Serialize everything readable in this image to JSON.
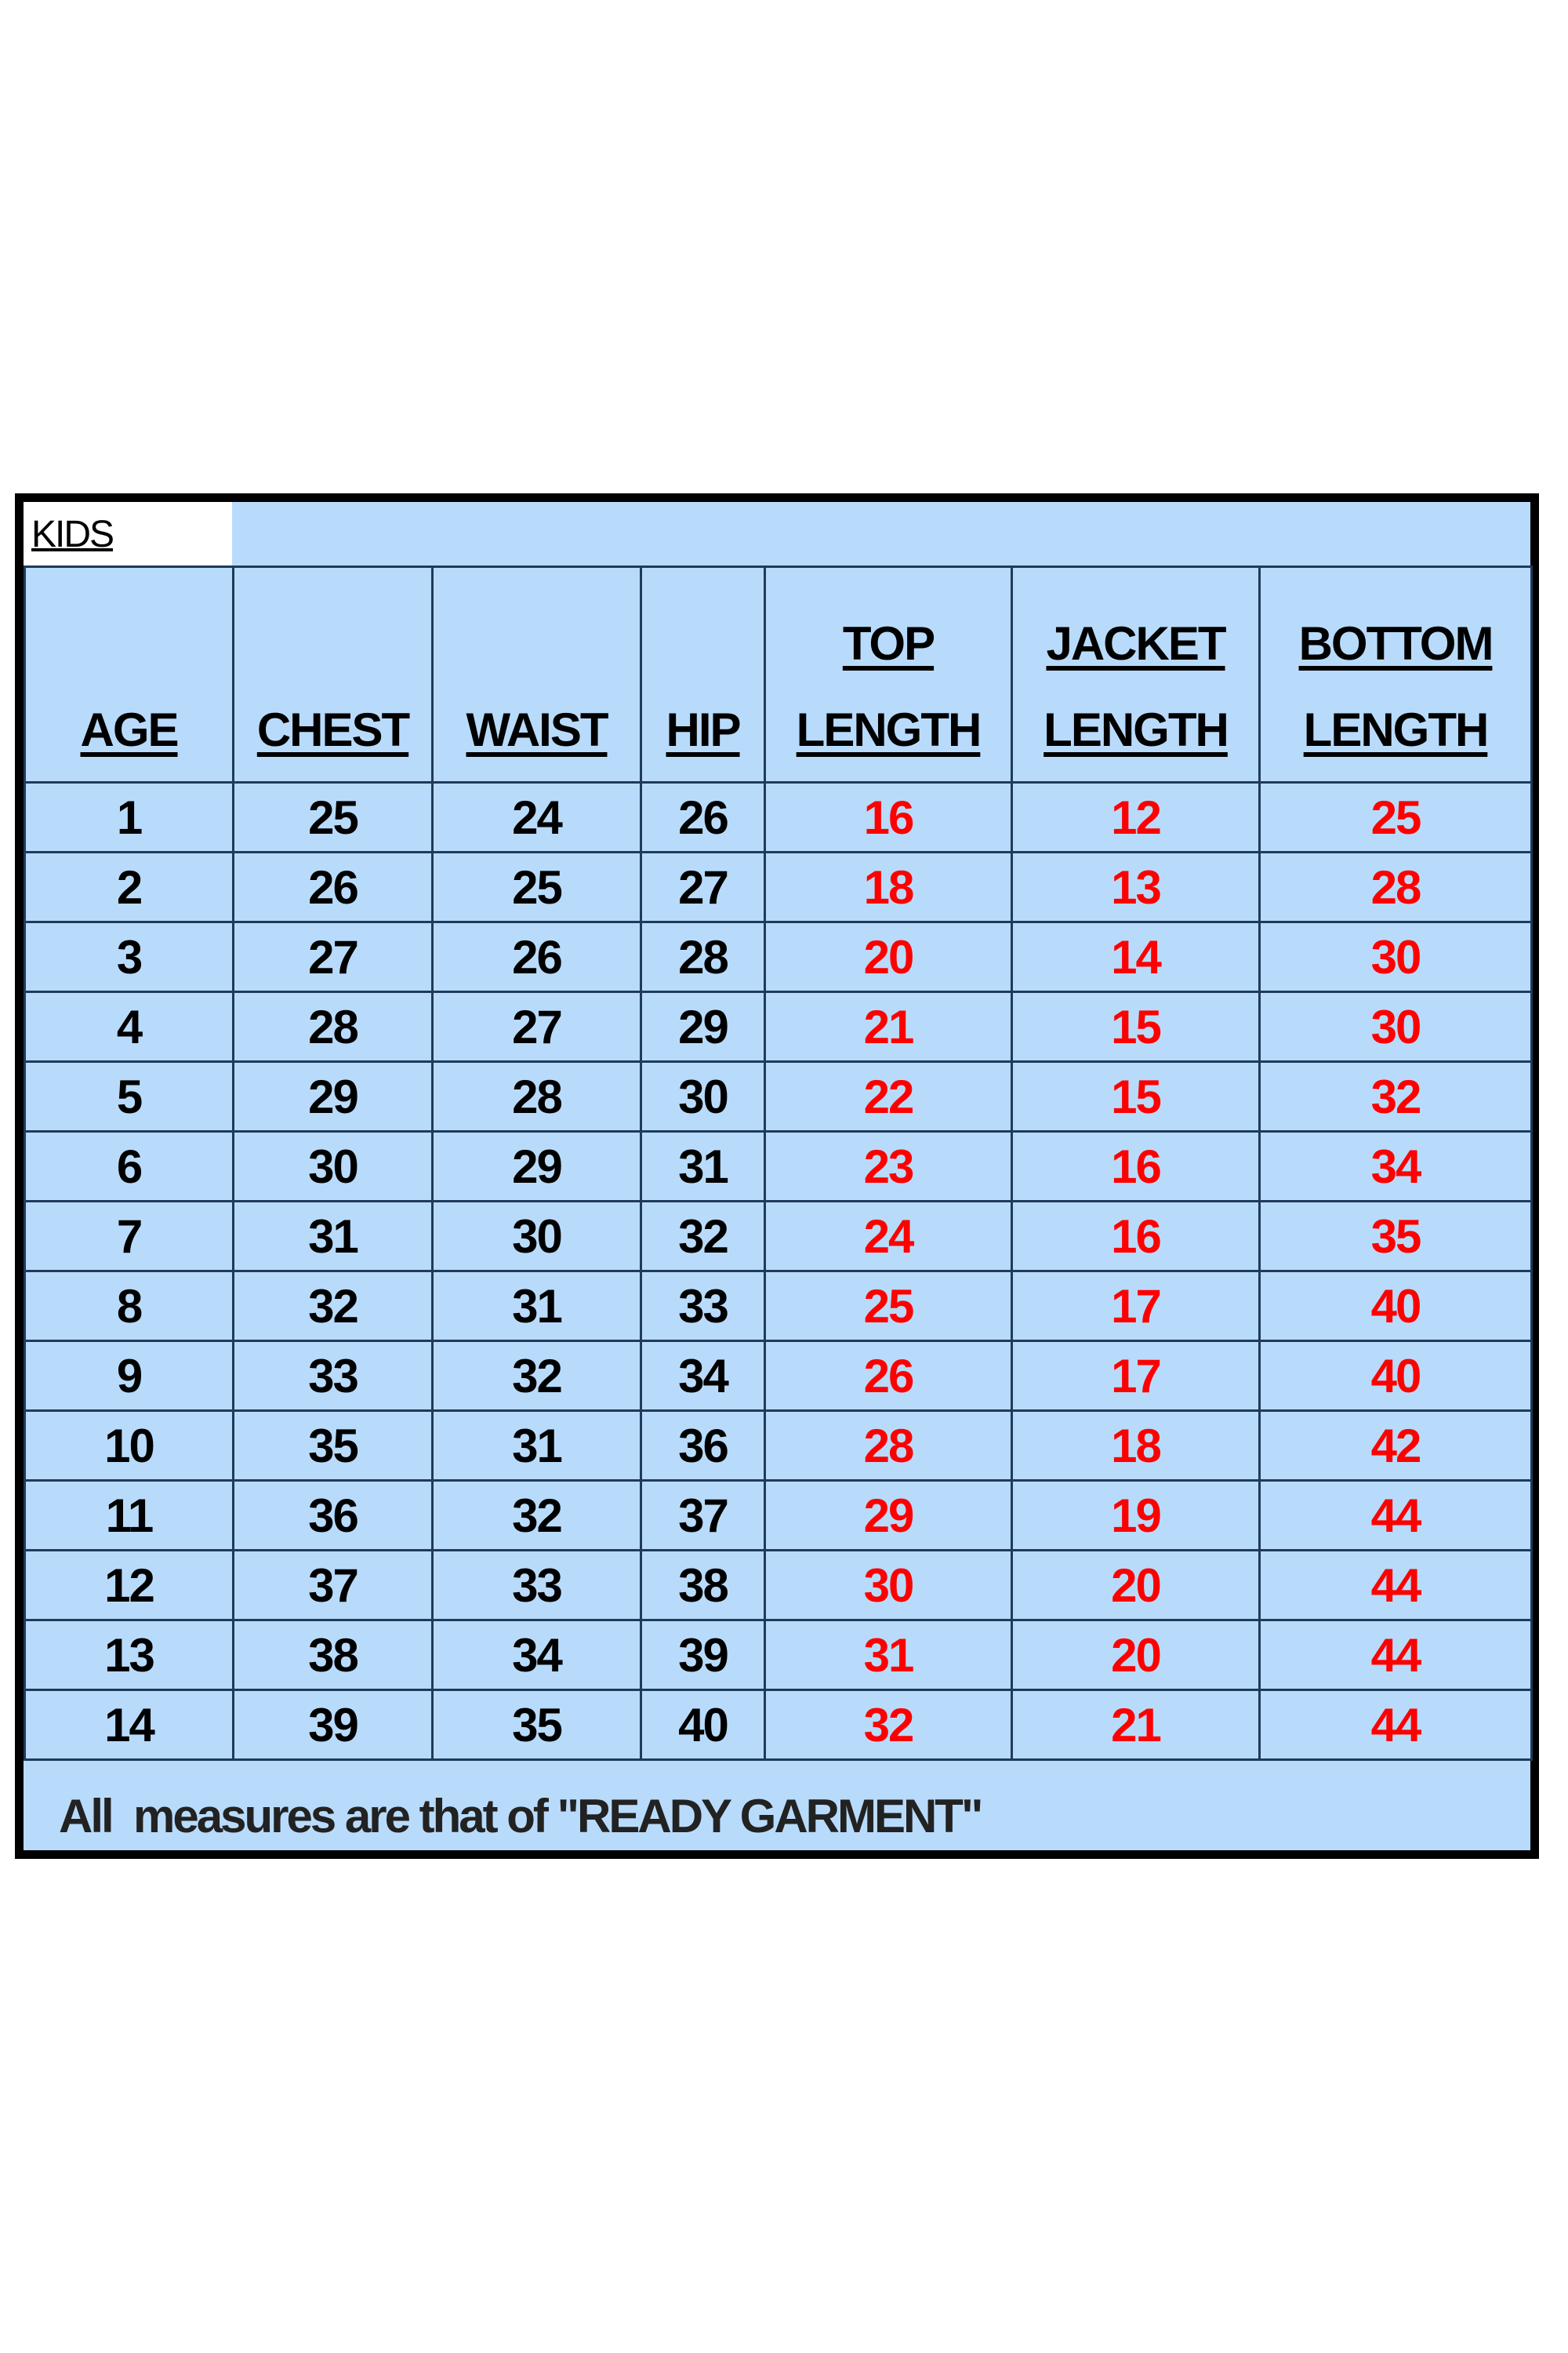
{
  "title": "KIDS",
  "columns": [
    {
      "top": "",
      "bottom": "AGE"
    },
    {
      "top": "",
      "bottom": "CHEST"
    },
    {
      "top": "",
      "bottom": "WAIST"
    },
    {
      "top": "",
      "bottom": "HIP"
    },
    {
      "top": "TOP",
      "bottom": "LENGTH"
    },
    {
      "top": "JACKET",
      "bottom": "LENGTH"
    },
    {
      "top": "BOTTOM",
      "bottom": "LENGTH"
    }
  ],
  "rows": [
    [
      "1",
      "25",
      "24",
      "26",
      "16",
      "12",
      "25"
    ],
    [
      "2",
      "26",
      "25",
      "27",
      "18",
      "13",
      "28"
    ],
    [
      "3",
      "27",
      "26",
      "28",
      "20",
      "14",
      "30"
    ],
    [
      "4",
      "28",
      "27",
      "29",
      "21",
      "15",
      "30"
    ],
    [
      "5",
      "29",
      "28",
      "30",
      "22",
      "15",
      "32"
    ],
    [
      "6",
      "30",
      "29",
      "31",
      "23",
      "16",
      "34"
    ],
    [
      "7",
      "31",
      "30",
      "32",
      "24",
      "16",
      "35"
    ],
    [
      "8",
      "32",
      "31",
      "33",
      "25",
      "17",
      "40"
    ],
    [
      "9",
      "33",
      "32",
      "34",
      "26",
      "17",
      "40"
    ],
    [
      "10",
      "35",
      "31",
      "36",
      "28",
      "18",
      "42"
    ],
    [
      "11",
      "36",
      "32",
      "37",
      "29",
      "19",
      "44"
    ],
    [
      "12",
      "37",
      "33",
      "38",
      "30",
      "20",
      "44"
    ],
    [
      "13",
      "38",
      "34",
      "39",
      "31",
      "20",
      "44"
    ],
    [
      "14",
      "39",
      "35",
      "40",
      "32",
      "21",
      "44"
    ]
  ],
  "footer": "All  measures are that of \"READY GARMENT\"",
  "colors": {
    "cell_bg": "#b9dbfb",
    "grid": "#1f3a5a",
    "body_text": "#000000",
    "length_text": "#ff0000"
  }
}
